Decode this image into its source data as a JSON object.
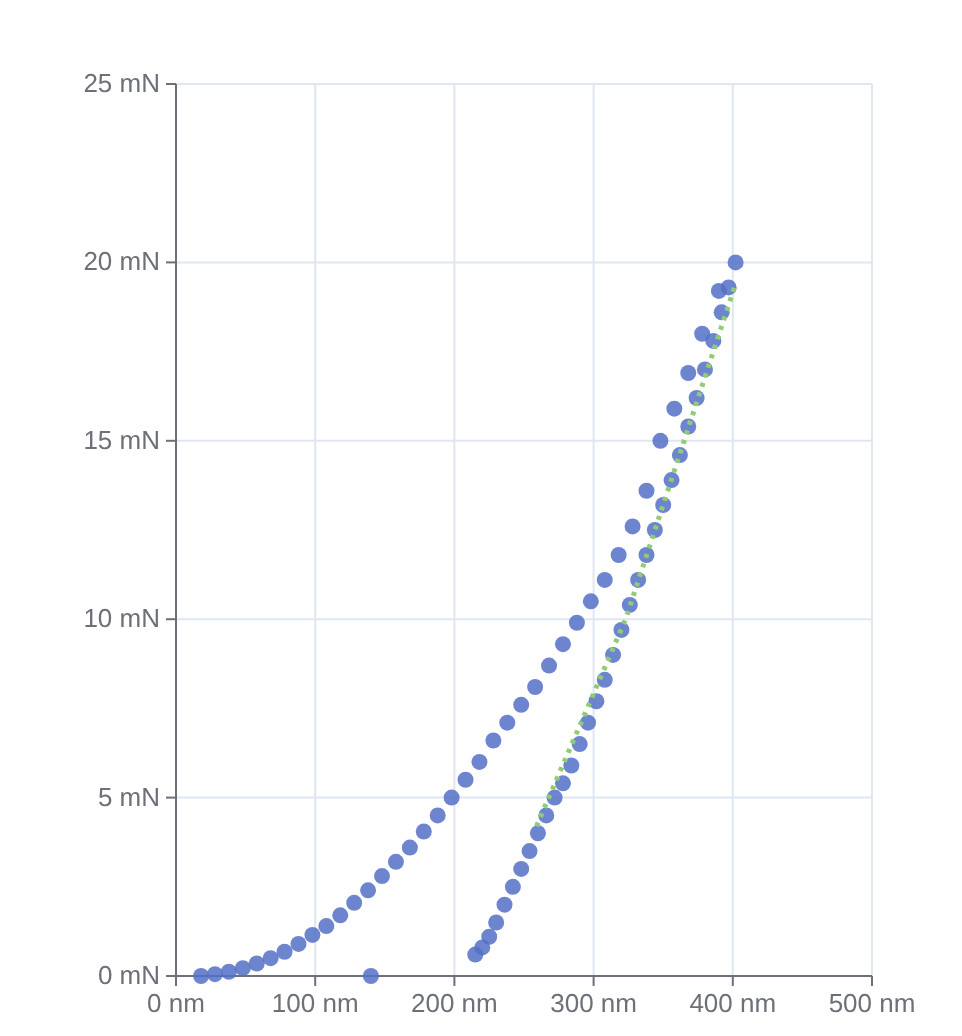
{
  "chart_data": {
    "type": "scatter",
    "xlim": [
      0,
      500
    ],
    "ylim": [
      0,
      25
    ],
    "xticks": [
      {
        "value": 0,
        "label": "0 nm"
      },
      {
        "value": 100,
        "label": "100 nm"
      },
      {
        "value": 200,
        "label": "200 nm"
      },
      {
        "value": 300,
        "label": "300 nm"
      },
      {
        "value": 400,
        "label": "400 nm"
      },
      {
        "value": 500,
        "label": "500 nm"
      }
    ],
    "yticks": [
      {
        "value": 0,
        "label": "0 mN"
      },
      {
        "value": 5,
        "label": "5 mN"
      },
      {
        "value": 10,
        "label": "10 mN"
      },
      {
        "value": 15,
        "label": "15 mN"
      },
      {
        "value": 20,
        "label": "20 mN"
      },
      {
        "value": 25,
        "label": "25 mN"
      }
    ],
    "grid": true,
    "marker": "circle",
    "series": [
      {
        "color": "#5470c6",
        "x": [
          18,
          28,
          38,
          48,
          58,
          68,
          78,
          88,
          98,
          108,
          118,
          128,
          138,
          148,
          158,
          168,
          178,
          188,
          198,
          208,
          218,
          228,
          238,
          248,
          258,
          268,
          278,
          288,
          298,
          308,
          318,
          328,
          338,
          348,
          358,
          368,
          378,
          390,
          402,
          140
        ],
        "values": [
          0,
          0.05,
          0.12,
          0.22,
          0.35,
          0.5,
          0.68,
          0.9,
          1.15,
          1.4,
          1.7,
          2.05,
          2.4,
          2.8,
          3.2,
          3.6,
          4.05,
          4.5,
          5,
          5.5,
          6,
          6.6,
          7.1,
          7.6,
          8.1,
          8.7,
          9.3,
          9.9,
          10.5,
          11.1,
          11.8,
          12.6,
          13.6,
          15,
          15.9,
          16.9,
          18,
          19.2,
          20,
          0
        ]
      },
      {
        "color": "#5470c6",
        "x": [
          397,
          392,
          386,
          380,
          374,
          368,
          362,
          356,
          350,
          344,
          338,
          332,
          326,
          320,
          314,
          308,
          302,
          296,
          290,
          284,
          278,
          272,
          266,
          260,
          254,
          248,
          242,
          236,
          230,
          225,
          220,
          215
        ],
        "values": [
          19.3,
          18.6,
          17.8,
          17,
          16.2,
          15.4,
          14.6,
          13.9,
          13.2,
          12.5,
          11.8,
          11.1,
          10.4,
          9.7,
          9,
          8.3,
          7.7,
          7.1,
          6.5,
          5.9,
          5.4,
          5,
          4.5,
          4,
          3.5,
          3,
          2.5,
          2,
          1.5,
          1.1,
          0.8,
          0.6
        ]
      },
      {
        "type": "line",
        "color": "#91cc75",
        "line_style": "dotted",
        "marker": "none",
        "x": [
          259,
          323,
          402
        ],
        "values": [
          4.2,
          10,
          19.4
        ]
      }
    ]
  }
}
